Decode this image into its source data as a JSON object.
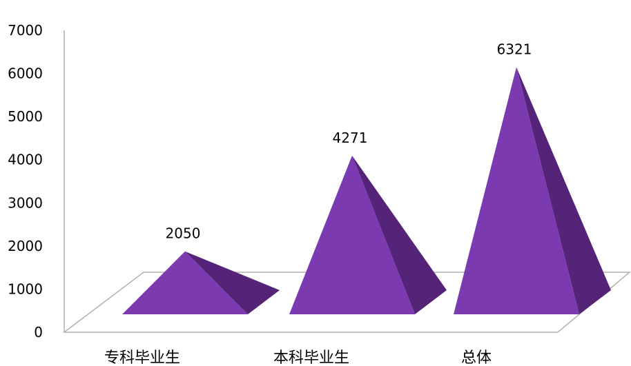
{
  "chart_data": {
    "type": "bar",
    "style": "3d-pyramid",
    "categories": [
      "专科毕业生",
      "本科毕业生",
      "总体"
    ],
    "values": [
      2050,
      4271,
      6321
    ],
    "data_labels": [
      "2050",
      "4271",
      "6321"
    ],
    "ylim": [
      0,
      7000
    ],
    "yticks": [
      0,
      1000,
      2000,
      3000,
      4000,
      5000,
      6000,
      7000
    ],
    "ytick_labels": [
      "0",
      "1000",
      "2000",
      "3000",
      "4000",
      "5000",
      "6000",
      "7000"
    ],
    "grid": false,
    "legend": "none",
    "colors": {
      "front_face": "#7B3AB0",
      "side_face": "#552377",
      "frame": "#B0B0B0"
    }
  }
}
